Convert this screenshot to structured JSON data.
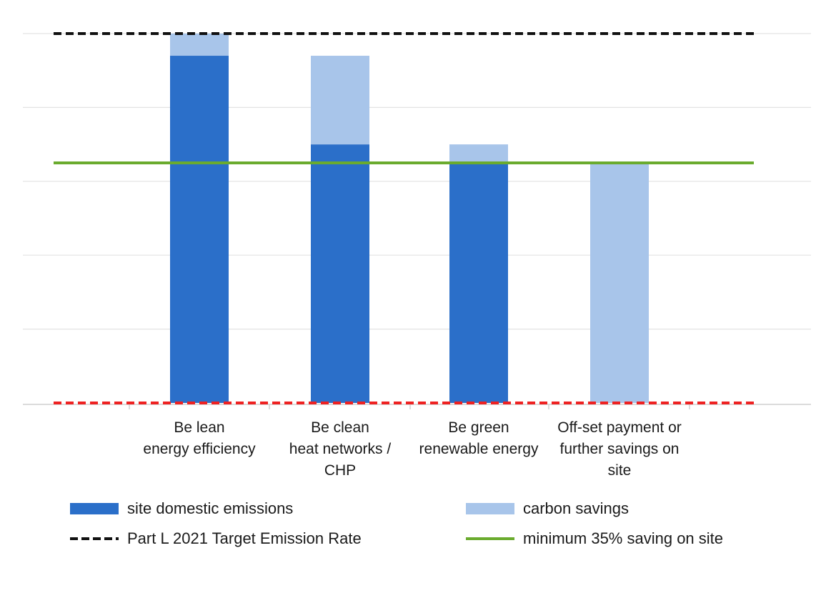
{
  "chart_data": {
    "type": "bar",
    "stacked": true,
    "categories": [
      "Be lean\nenergy efficiency",
      "Be clean\nheat networks /\nCHP",
      "Be green\nrenewable energy",
      "Off-set payment or\nfurther savings on\nsite"
    ],
    "series": [
      {
        "name": "site domestic emissions",
        "color": "#2b6fc9",
        "values": [
          94,
          70,
          65,
          0
        ]
      },
      {
        "name": "carbon savings",
        "color": "#a8c5ea",
        "values": [
          6,
          24,
          5,
          65
        ]
      }
    ],
    "reference_lines": [
      {
        "name": "Part L 2021 Target Emission Rate",
        "value": 100,
        "color": "#111111",
        "style": "dashed"
      },
      {
        "name": "minimum 35% saving on site",
        "value": 65,
        "color": "#6aab2e",
        "style": "solid"
      },
      {
        "name": "",
        "value": 0,
        "color": "#ee2222",
        "style": "dashed"
      }
    ],
    "ylim": [
      0,
      100
    ],
    "grid": true,
    "legend_position": "bottom"
  }
}
